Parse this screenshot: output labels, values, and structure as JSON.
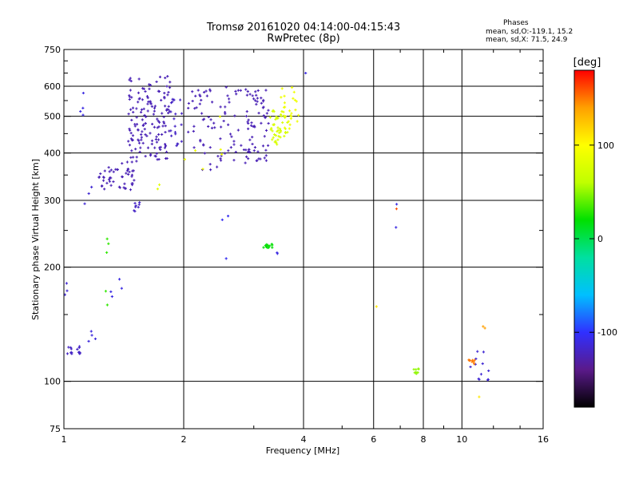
{
  "header": {
    "title_line1": "Tromsø 20161020 04:14:00-04:15:43",
    "title_line2": "RwPretec (8p)",
    "phases_heading": "Phases",
    "phases_o": "mean, sd,O:-119.1, 15.2",
    "phases_x": "mean, sd,X:  71.5, 24.9"
  },
  "chart_data": {
    "type": "scatter",
    "title": "Tromsø 20161020 04:14:00-04:15:43",
    "subtitle": "RwPretec (8p)",
    "xlabel": "Frequency [MHz]",
    "ylabel": "Stationary phase Virtual Height [km]",
    "x_scale": "log",
    "y_scale": "log",
    "xlim": [
      1,
      16
    ],
    "ylim": [
      75,
      750
    ],
    "x_ticks": [
      1,
      2,
      4,
      6,
      8,
      10,
      16
    ],
    "x_tick_labels": [
      "1",
      "2",
      "4",
      "6",
      "8",
      "10",
      "16"
    ],
    "y_ticks": [
      75,
      100,
      200,
      300,
      400,
      500,
      600,
      750
    ],
    "y_tick_labels": [
      "75",
      "100",
      "200",
      "300",
      "400",
      "500",
      "600",
      "750"
    ],
    "x_minor_ticks": [
      3,
      5,
      7,
      9,
      12,
      14
    ],
    "y_minor_ticks": [
      150,
      250,
      350,
      450,
      550,
      650,
      700
    ],
    "grid": true,
    "colorbar": {
      "label": "[deg]",
      "range": [
        -180,
        180
      ],
      "ticks": [
        -100,
        0,
        100
      ],
      "tick_labels": [
        "-100",
        "0",
        "100"
      ],
      "colors": [
        "#000000",
        "#5a1a8a",
        "#3030ff",
        "#00c0ff",
        "#00e0a0",
        "#00e000",
        "#c0ff00",
        "#ffff00",
        "#ffa000",
        "#ff0000"
      ]
    },
    "series": [
      {
        "clusters": [
          {
            "x": [
              1.02,
              1.1
            ],
            "y": [
              118,
              124
            ],
            "n": 14,
            "phase": -120
          },
          {
            "x": [
              1.08,
              1.12
            ],
            "y": [
              500,
              580
            ],
            "n": 4,
            "phase": -110
          },
          {
            "x": [
              1.1,
              1.18
            ],
            "y": [
              290,
              330
            ],
            "n": 3,
            "phase": -115
          },
          {
            "x": [
              1.14,
              1.2
            ],
            "y": [
              125,
              140
            ],
            "n": 4,
            "phase": -112
          },
          {
            "x": [
              1.0,
              1.05
            ],
            "y": [
              140,
              200
            ],
            "n": 3,
            "phase": -115
          },
          {
            "x": [
              1.22,
              1.52
            ],
            "y": [
              320,
              380
            ],
            "n": 50,
            "phase": -125
          },
          {
            "x": [
              1.45,
              1.85
            ],
            "y": [
              380,
              640
            ],
            "n": 150,
            "phase": -125
          },
          {
            "x": [
              1.5,
              1.62
            ],
            "y": [
              280,
              300
            ],
            "n": 8,
            "phase": -120
          },
          {
            "x": [
              1.85,
              1.98
            ],
            "y": [
              400,
              560
            ],
            "n": 20,
            "phase": -120
          },
          {
            "x": [
              2.05,
              2.95
            ],
            "y": [
              360,
              610
            ],
            "n": 90,
            "phase": -125
          },
          {
            "x": [
              2.9,
              3.3
            ],
            "y": [
              380,
              600
            ],
            "n": 50,
            "phase": -125
          },
          {
            "x": [
              1.3,
              1.4
            ],
            "y": [
              130,
              220
            ],
            "n": 4,
            "phase": -110
          },
          {
            "x": [
              2.45,
              2.6
            ],
            "y": [
              210,
              290
            ],
            "n": 3,
            "phase": -105
          },
          {
            "x": [
              3.4,
              3.5
            ],
            "y": [
              210,
              220
            ],
            "n": 2,
            "phase": -110
          },
          {
            "x": [
              4.0,
              4.1
            ],
            "y": [
              640,
              660
            ],
            "n": 1,
            "phase": -110
          },
          {
            "x": [
              6.8,
              6.95
            ],
            "y": [
              185,
              580
            ],
            "n": 2,
            "phase": -110
          },
          {
            "x": [
              10.5,
              11.8
            ],
            "y": [
              100,
              120
            ],
            "n": 12,
            "phase": -115
          },
          {
            "x": [
              3.3,
              3.65
            ],
            "y": [
              420,
              520
            ],
            "n": 45,
            "phase": 75
          },
          {
            "x": [
              3.5,
              3.9
            ],
            "y": [
              460,
              600
            ],
            "n": 25,
            "phase": 90
          },
          {
            "x": [
              3.15,
              3.35
            ],
            "y": [
              225,
              232
            ],
            "n": 12,
            "phase": 20
          },
          {
            "x": [
              1.25,
              1.3
            ],
            "y": [
              120,
              250
            ],
            "n": 5,
            "phase": 30
          },
          {
            "x": [
              1.7,
              1.75
            ],
            "y": [
              320,
              330
            ],
            "n": 2,
            "phase": 80
          },
          {
            "x": [
              2.0,
              2.5
            ],
            "y": [
              360,
              500
            ],
            "n": 6,
            "phase": 90
          },
          {
            "x": [
              7.5,
              7.9
            ],
            "y": [
              103,
              108
            ],
            "n": 8,
            "phase": 50
          },
          {
            "x": [
              10.4,
              10.8
            ],
            "y": [
              110,
              114
            ],
            "n": 8,
            "phase": 150
          },
          {
            "x": [
              6.8,
              6.9
            ],
            "y": [
              280,
              290
            ],
            "n": 1,
            "phase": 160
          },
          {
            "x": [
              6.05,
              6.15
            ],
            "y": [
              155,
              160
            ],
            "n": 1,
            "phase": 110
          },
          {
            "x": [
              10.9,
              11.2
            ],
            "y": [
              90,
              92
            ],
            "n": 1,
            "phase": 110
          },
          {
            "x": [
              11.3,
              11.6
            ],
            "y": [
              138,
              142
            ],
            "n": 2,
            "phase": 140
          }
        ]
      }
    ]
  }
}
